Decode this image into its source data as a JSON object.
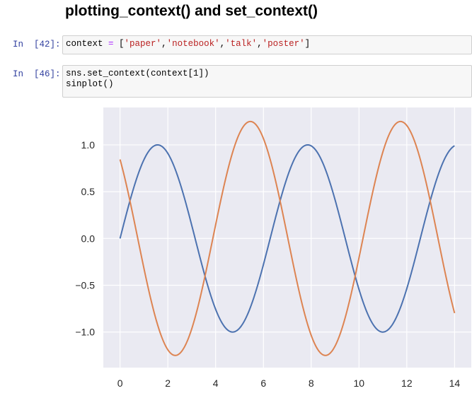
{
  "heading": "plotting_context() and set_context()",
  "cells": [
    {
      "prompt": "In  [42]:",
      "code_lines": [
        {
          "tokens": [
            {
              "t": "context ",
              "c": ""
            },
            {
              "t": "=",
              "c": "op"
            },
            {
              "t": " [",
              "c": ""
            },
            {
              "t": "'paper'",
              "c": "str"
            },
            {
              "t": ",",
              "c": ""
            },
            {
              "t": "'notebook'",
              "c": "str"
            },
            {
              "t": ",",
              "c": ""
            },
            {
              "t": "'talk'",
              "c": "str"
            },
            {
              "t": ",",
              "c": ""
            },
            {
              "t": "'poster'",
              "c": "str"
            },
            {
              "t": "]",
              "c": ""
            }
          ]
        }
      ]
    },
    {
      "prompt": "In  [46]:",
      "code_lines": [
        {
          "tokens": [
            {
              "t": "sns.set_context(context[1])",
              "c": ""
            }
          ]
        },
        {
          "tokens": [
            {
              "t": "sinplot()",
              "c": ""
            }
          ]
        }
      ]
    }
  ],
  "chart_data": {
    "type": "line",
    "title": "",
    "xlabel": "",
    "ylabel": "",
    "xlim": [
      -0.7,
      14.7
    ],
    "ylim": [
      -1.38,
      1.4
    ],
    "xticks": [
      0,
      2,
      4,
      6,
      8,
      10,
      12,
      14
    ],
    "xtick_labels": [
      "0",
      "2",
      "4",
      "6",
      "8",
      "10",
      "12",
      "14"
    ],
    "yticks": [
      -1.0,
      -0.5,
      0.0,
      0.5,
      1.0
    ],
    "ytick_labels": [
      "−1.0",
      "−0.5",
      "0.0",
      "0.5",
      "1.0"
    ],
    "grid": true,
    "background_color": "#eaeaf2",
    "series": [
      {
        "color": "#4c72b0",
        "formula": "sin(x)",
        "x_range": [
          0,
          14
        ]
      },
      {
        "color": "#dd8452",
        "formula": "1.25*sin(x+2.4)",
        "x_range": [
          0,
          14
        ]
      }
    ]
  }
}
